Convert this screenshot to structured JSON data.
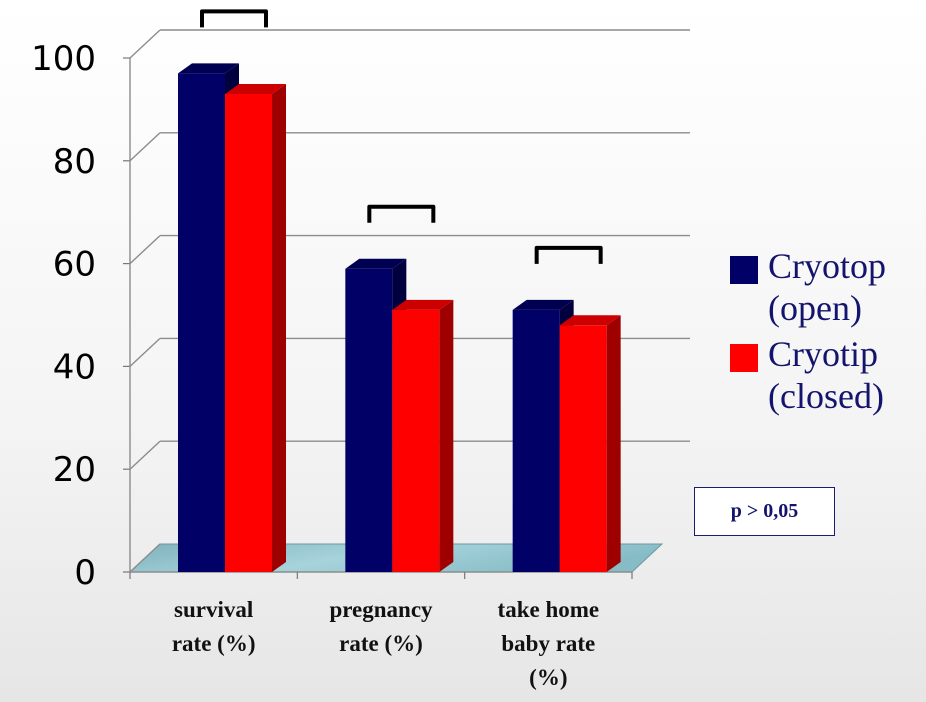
{
  "chart_data": {
    "type": "bar",
    "categories": [
      [
        "survival",
        "rate (%)"
      ],
      [
        "pregnancy",
        "rate (%)"
      ],
      [
        "take home",
        "baby rate",
        "(%)"
      ]
    ],
    "series": [
      {
        "name": "Cryotop (open)",
        "name_lines": [
          "Cryotop",
          "(open)"
        ],
        "color": "#000066",
        "values": [
          97,
          59,
          51
        ]
      },
      {
        "name": "Cryotip (closed)",
        "name_lines": [
          "Cryotip",
          "(closed)"
        ],
        "color": "#ff0000",
        "values": [
          93,
          51,
          48
        ]
      }
    ],
    "yticks": [
      "0",
      "20",
      "40",
      "60",
      "80",
      "100"
    ],
    "ylim": [
      0,
      100
    ],
    "grid": true,
    "legend_position": "right",
    "annotation": "p > 0,05"
  }
}
